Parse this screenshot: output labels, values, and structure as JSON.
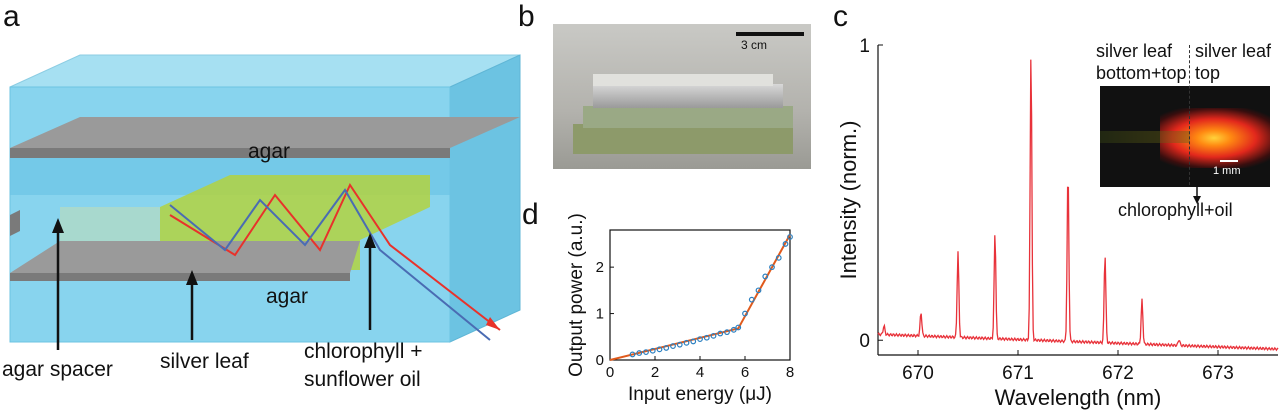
{
  "panels": {
    "a": {
      "letter": "a",
      "labels": {
        "agar_top": "agar",
        "agar_bottom": "agar",
        "agar_spacer": "agar spacer",
        "silver_leaf": "silver leaf",
        "chlorophyll_line1": "chlorophyll +",
        "chlorophyll_line2": "sunflower oil"
      },
      "colors": {
        "agar": "#7fd3ec",
        "silver": "#808080",
        "gain": "#a8cf3a",
        "ray_red": "#e8322b",
        "ray_blue": "#4a6cb3"
      }
    },
    "b": {
      "letter": "b",
      "scale_label": "3 cm"
    },
    "c": {
      "letter": "c",
      "inset": {
        "left_line1": "silver leaf",
        "left_line2": "bottom+top",
        "right_line1": "silver leaf",
        "right_line2": "top",
        "scale_label": "1 mm",
        "arrow_label": "chlorophyll+oil"
      }
    },
    "d": {
      "letter": "d"
    }
  },
  "chart_data": [
    {
      "type": "scatter",
      "panel": "d",
      "xlabel": "Input energy (μJ)",
      "ylabel": "Output power (a.u.)",
      "xlim": [
        0,
        8
      ],
      "ylim": [
        0,
        2.8
      ],
      "xticks": [
        "0",
        "2",
        "4",
        "6",
        "8"
      ],
      "yticks": [
        "0",
        "1",
        "2"
      ],
      "series": [
        {
          "color": "#2a7fc0",
          "x": [
            1.0,
            1.3,
            1.6,
            1.9,
            2.2,
            2.5,
            2.8,
            3.1,
            3.4,
            3.7,
            4.0,
            4.3,
            4.6,
            4.9,
            5.2,
            5.5,
            5.7,
            6.0,
            6.3,
            6.6,
            6.9,
            7.2,
            7.5,
            7.8,
            8.0
          ],
          "y": [
            0.12,
            0.15,
            0.17,
            0.2,
            0.23,
            0.26,
            0.3,
            0.33,
            0.37,
            0.4,
            0.45,
            0.48,
            0.52,
            0.57,
            0.6,
            0.65,
            0.7,
            1.0,
            1.3,
            1.5,
            1.8,
            2.0,
            2.2,
            2.5,
            2.65
          ]
        }
      ],
      "fit": {
        "color": "#e05a1c",
        "x": [
          0,
          5.7,
          8.0
        ],
        "y": [
          0,
          0.68,
          2.7
        ]
      }
    },
    {
      "type": "line",
      "panel": "c",
      "xlabel": "Wavelength (nm)",
      "ylabel": "Intensity (norm.)",
      "xlim": [
        669.6,
        673.6
      ],
      "ylim": [
        -0.05,
        1.0
      ],
      "xticks": [
        "670",
        "671",
        "672",
        "673"
      ],
      "yticks": [
        "0",
        "1"
      ],
      "series": [
        {
          "color": "#e8323a",
          "peaks_x": [
            669.66,
            670.03,
            670.4,
            670.77,
            671.13,
            671.5,
            671.87,
            672.24,
            672.61
          ],
          "peaks_y": [
            0.03,
            0.08,
            0.29,
            0.36,
            0.98,
            0.58,
            0.3,
            0.15,
            0.02
          ],
          "baseline_start": 0.02,
          "baseline_end": -0.03
        }
      ]
    }
  ]
}
